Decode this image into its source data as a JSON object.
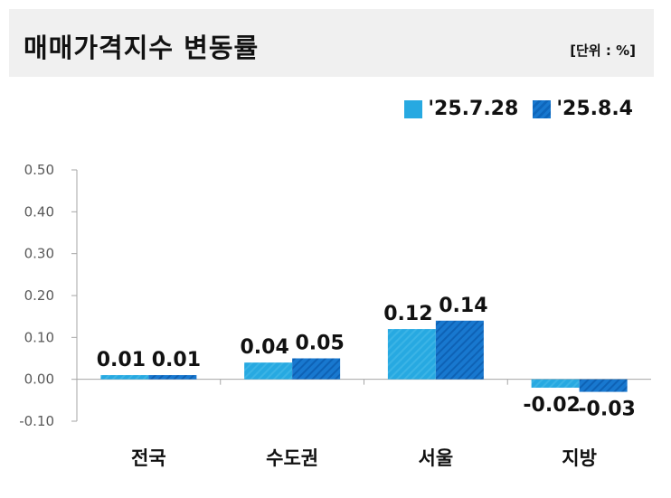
{
  "header": {
    "title": "매매가격지수 변동률",
    "unit": "[단위 : %]"
  },
  "colors": {
    "series1": "#27a9e1",
    "series2": "#1878cf"
  },
  "chart_data": {
    "type": "bar",
    "title": "매매가격지수 변동률",
    "unit_label": "[단위 : %]",
    "categories": [
      "전국",
      "수도권",
      "서울",
      "지방"
    ],
    "series": [
      {
        "name": "'25.7.28",
        "values": [
          0.01,
          0.04,
          0.12,
          -0.02
        ]
      },
      {
        "name": "'25.8.4",
        "values": [
          0.01,
          0.05,
          0.14,
          -0.03
        ]
      }
    ],
    "data_labels": [
      [
        "0.01",
        "0.04",
        "0.12",
        "-0.02"
      ],
      [
        "0.01",
        "0.05",
        "0.14",
        "-0.03"
      ]
    ],
    "ylim": [
      -0.1,
      0.5
    ],
    "yticks": [
      0.5,
      0.4,
      0.3,
      0.2,
      0.1,
      0.0,
      -0.1
    ],
    "ytick_labels": [
      "0.50",
      "0.40",
      "0.30",
      "0.20",
      "0.10",
      "0.00",
      "-0.10"
    ],
    "grid": false,
    "legend_position": "top-right"
  }
}
